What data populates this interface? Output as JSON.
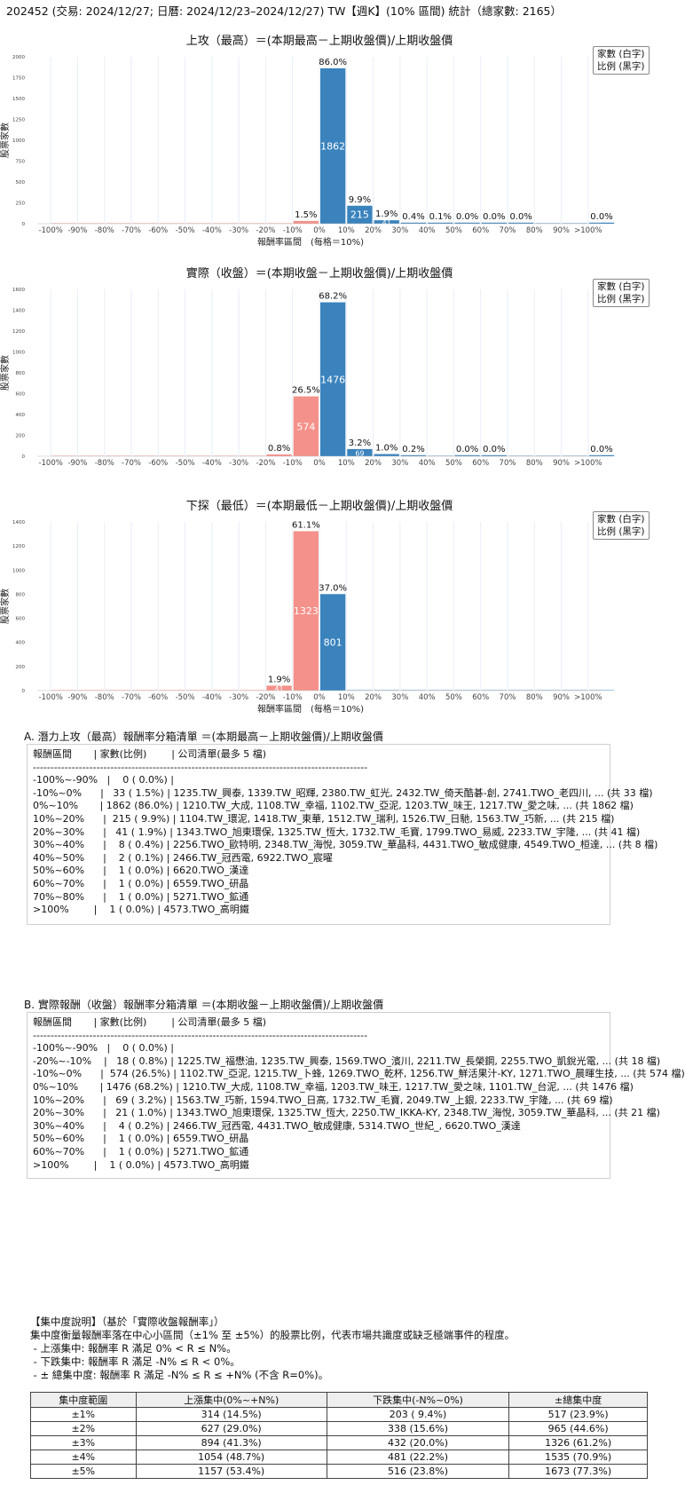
{
  "main_title": "202452 (交易: 2024/12/27; 日曆: 2024/12/23–2024/12/27) TW【週K】(10% 區間) 統計（總家數: 2165）",
  "legend": {
    "line1": "家數 (白字)",
    "line2": "比例 (黑字)"
  },
  "colors": {
    "positive": "#3a83bd",
    "negative": "#f4918a",
    "grid": "#e6eef7"
  },
  "chart_data": [
    {
      "type": "bar",
      "title": "上攻（最高）＝(本期最高－上期收盤價)/上期收盤價",
      "xlabel": "報酬率區間　(每格＝10%)",
      "ylabel": "股票家數",
      "categories": [
        "-100%",
        "-90%",
        "-80%",
        "-70%",
        "-60%",
        "-50%",
        "-40%",
        "-30%",
        "-20%",
        "-10%",
        "0%",
        "10%",
        "20%",
        "30%",
        "40%",
        "50%",
        "60%",
        "70%",
        "80%",
        "90%",
        ">100%"
      ],
      "values": [
        0,
        0,
        0,
        0,
        0,
        0,
        0,
        0,
        0,
        33,
        1862,
        215,
        41,
        8,
        2,
        1,
        1,
        1,
        0,
        0,
        1
      ],
      "pct_labels": [
        "",
        "",
        "",
        "",
        "",
        "",
        "",
        "",
        "",
        "1.5%",
        "86.0%",
        "9.9%",
        "1.9%",
        "0.4%",
        "0.1%",
        "0.0%",
        "0.0%",
        "0.0%",
        "",
        "",
        "0.0%"
      ],
      "count_labels": [
        "",
        "",
        "",
        "",
        "",
        "",
        "",
        "",
        "",
        "",
        "1862",
        "215",
        "41",
        "",
        "",
        "",
        "",
        "",
        "",
        "",
        ""
      ],
      "yticks": [
        0,
        250,
        500,
        750,
        1000,
        1250,
        1500,
        1750,
        2000
      ],
      "ylim": [
        0,
        2000
      ],
      "grid": true
    },
    {
      "type": "bar",
      "title": "實際（收盤）＝(本期收盤－上期收盤價)/上期收盤價",
      "xlabel": "",
      "ylabel": "股票家數",
      "categories": [
        "-100%",
        "-90%",
        "-80%",
        "-70%",
        "-60%",
        "-50%",
        "-40%",
        "-30%",
        "-20%",
        "-10%",
        "0%",
        "10%",
        "20%",
        "30%",
        "40%",
        "50%",
        "60%",
        "70%",
        "80%",
        "90%",
        ">100%"
      ],
      "values": [
        0,
        0,
        0,
        0,
        0,
        0,
        0,
        0,
        18,
        574,
        1476,
        69,
        21,
        4,
        0,
        1,
        1,
        0,
        0,
        0,
        1
      ],
      "pct_labels": [
        "",
        "",
        "",
        "",
        "",
        "",
        "",
        "",
        "0.8%",
        "26.5%",
        "68.2%",
        "3.2%",
        "1.0%",
        "0.2%",
        "",
        "0.0%",
        "0.0%",
        "",
        "",
        "",
        "0.0%"
      ],
      "count_labels": [
        "",
        "",
        "",
        "",
        "",
        "",
        "",
        "",
        "",
        "574",
        "1476",
        "69",
        "",
        "",
        "",
        "",
        "",
        "",
        "",
        "",
        ""
      ],
      "yticks": [
        0,
        200,
        400,
        600,
        800,
        1000,
        1200,
        1400,
        1600
      ],
      "ylim": [
        0,
        1600
      ],
      "grid": true
    },
    {
      "type": "bar",
      "title": "下探（最低）＝(本期最低－上期收盤價)/上期收盤價",
      "xlabel": "報酬率區間　(每格＝10%)",
      "ylabel": "股票家數",
      "categories": [
        "-100%",
        "-90%",
        "-80%",
        "-70%",
        "-60%",
        "-50%",
        "-40%",
        "-30%",
        "-20%",
        "-10%",
        "0%",
        "10%",
        "20%",
        "30%",
        "40%",
        "50%",
        "60%",
        "70%",
        "80%",
        "90%",
        ">100%"
      ],
      "values": [
        0,
        0,
        0,
        0,
        0,
        0,
        0,
        0,
        41,
        1323,
        801,
        0,
        0,
        0,
        0,
        0,
        0,
        0,
        0,
        0,
        0
      ],
      "pct_labels": [
        "",
        "",
        "",
        "",
        "",
        "",
        "",
        "",
        "1.9%",
        "61.1%",
        "37.0%",
        "",
        "",
        "",
        "",
        "",
        "",
        "",
        "",
        "",
        ""
      ],
      "count_labels": [
        "",
        "",
        "",
        "",
        "",
        "",
        "",
        "",
        "41",
        "1323",
        "801",
        "",
        "",
        "",
        "",
        "",
        "",
        "",
        "",
        "",
        ""
      ],
      "yticks": [
        0,
        200,
        400,
        600,
        800,
        1000,
        1200,
        1400
      ],
      "ylim": [
        0,
        1400
      ],
      "grid": true
    }
  ],
  "section_a": {
    "title": "A. 潛力上攻（最高）報酬率分箱清單 ＝(本期最高－上期收盤價)/上期收盤價",
    "lines": [
      "報酬區間       | 家數(比例)        | 公司清單(最多 5 檔)",
      "-----------------------------------------------------------------------------------------------",
      "-100%~-90%   |    0 ( 0.0%) |",
      "-10%~0%      |   33 ( 1.5%) | 1235.TW_興泰, 1339.TW_昭輝, 2380.TW_虹光, 2432.TW_倚天酷碁-創, 2741.TWO_老四川, ... (共 33 檔)",
      "0%~10%       | 1862 (86.0%) | 1210.TW_大成, 1108.TW_幸福, 1102.TW_亞泥, 1203.TW_味王, 1217.TW_愛之味, ... (共 1862 檔)",
      "10%~20%      |  215 ( 9.9%) | 1104.TW_環泥, 1418.TW_東華, 1512.TW_瑞利, 1526.TW_日馳, 1563.TW_巧新, ... (共 215 檔)",
      "20%~30%      |   41 ( 1.9%) | 1343.TWO_旭東環保, 1325.TW_恆大, 1732.TW_毛寶, 1799.TWO_易威, 2233.TW_宇隆, ... (共 41 檔)",
      "30%~40%      |    8 ( 0.4%) | 2256.TWO_歐特明, 2348.TW_海悅, 3059.TW_華晶科, 4431.TWO_敏成健康, 4549.TWO_桓達, ... (共 8 檔)",
      "40%~50%      |    2 ( 0.1%) | 2466.TW_冠西電, 6922.TWO_宸曜",
      "50%~60%      |    1 ( 0.0%) | 6620.TWO_漢達",
      "60%~70%      |    1 ( 0.0%) | 6559.TWO_研晶",
      "70%~80%      |    1 ( 0.0%) | 5271.TWO_鉱通",
      ">100%        |    1 ( 0.0%) | 4573.TWO_高明鐵"
    ]
  },
  "section_b": {
    "title": "B. 實際報酬（收盤）報酬率分箱清單 ＝(本期收盤－上期收盤價)/上期收盤價",
    "lines": [
      "報酬區間       | 家數(比例)        | 公司清單(最多 5 檔)",
      "-----------------------------------------------------------------------------------------------",
      "-100%~-90%   |    0 ( 0.0%) |",
      "-20%~-10%    |   18 ( 0.8%) | 1225.TW_福懋油, 1235.TW_興泰, 1569.TWO_濱川, 2211.TW_長榮鋼, 2255.TWO_凱銳光電, ... (共 18 檔)",
      "-10%~0%      |  574 (26.5%) | 1102.TW_亞泥, 1215.TW_卜蜂, 1269.TWO_乾杯, 1256.TW_鮮活果汁-KY, 1271.TWO_晨暉生技, ... (共 574 檔)",
      "0%~10%       | 1476 (68.2%) | 1210.TW_大成, 1108.TW_幸福, 1203.TW_味王, 1217.TW_愛之味, 1101.TW_台泥, ... (共 1476 檔)",
      "10%~20%      |   69 ( 3.2%) | 1563.TW_巧新, 1594.TWO_日高, 1732.TW_毛寶, 2049.TW_上銀, 2233.TW_宇隆, ... (共 69 檔)",
      "20%~30%      |   21 ( 1.0%) | 1343.TWO_旭東環保, 1325.TW_恆大, 2250.TW_IKKA-KY, 2348.TW_海悅, 3059.TW_華晶科, ... (共 21 檔)",
      "30%~40%      |    4 ( 0.2%) | 2466.TW_冠西電, 4431.TWO_敏成健康, 5314.TWO_世紀_, 6620.TWO_漢達",
      "50%~60%      |    1 ( 0.0%) | 6559.TWO_研晶",
      "60%~70%      |    1 ( 0.0%) | 5271.TWO_鉱通",
      ">100%        |    1 ( 0.0%) | 4573.TWO_高明鐵"
    ]
  },
  "concentration": {
    "heading": "【集中度說明】（基於「實際收盤報酬率」）",
    "desc": "集中度衡量報酬率落在中心小區間（±1% 至 ±5%）的股票比例，代表市場共識度或缺乏極端事件的程度。",
    "bullets": [
      " - 上漲集中: 報酬率 R 滿足 0% < R ≤ N%。",
      " - 下跌集中: 報酬率 R 滿足 -N% ≤ R < 0%。",
      " - ± 總集中度: 報酬率 R 滿足 -N% ≤ R ≤ +N% (不含 R=0%)。"
    ],
    "table": {
      "headers": [
        "集中度範圍",
        "上漲集中(0%~+N%)",
        "下跌集中(-N%~0%)",
        "±總集中度"
      ],
      "rows": [
        [
          "±1%",
          "314 (14.5%)",
          "203 ( 9.4%)",
          "517 (23.9%)"
        ],
        [
          "±2%",
          "627 (29.0%)",
          "338 (15.6%)",
          "965 (44.6%)"
        ],
        [
          "±3%",
          "894 (41.3%)",
          "432 (20.0%)",
          "1326 (61.2%)"
        ],
        [
          "±4%",
          "1054 (48.7%)",
          "481 (22.2%)",
          "1535 (70.9%)"
        ],
        [
          "±5%",
          "1157 (53.4%)",
          "516 (23.8%)",
          "1673 (77.3%)"
        ]
      ]
    }
  }
}
